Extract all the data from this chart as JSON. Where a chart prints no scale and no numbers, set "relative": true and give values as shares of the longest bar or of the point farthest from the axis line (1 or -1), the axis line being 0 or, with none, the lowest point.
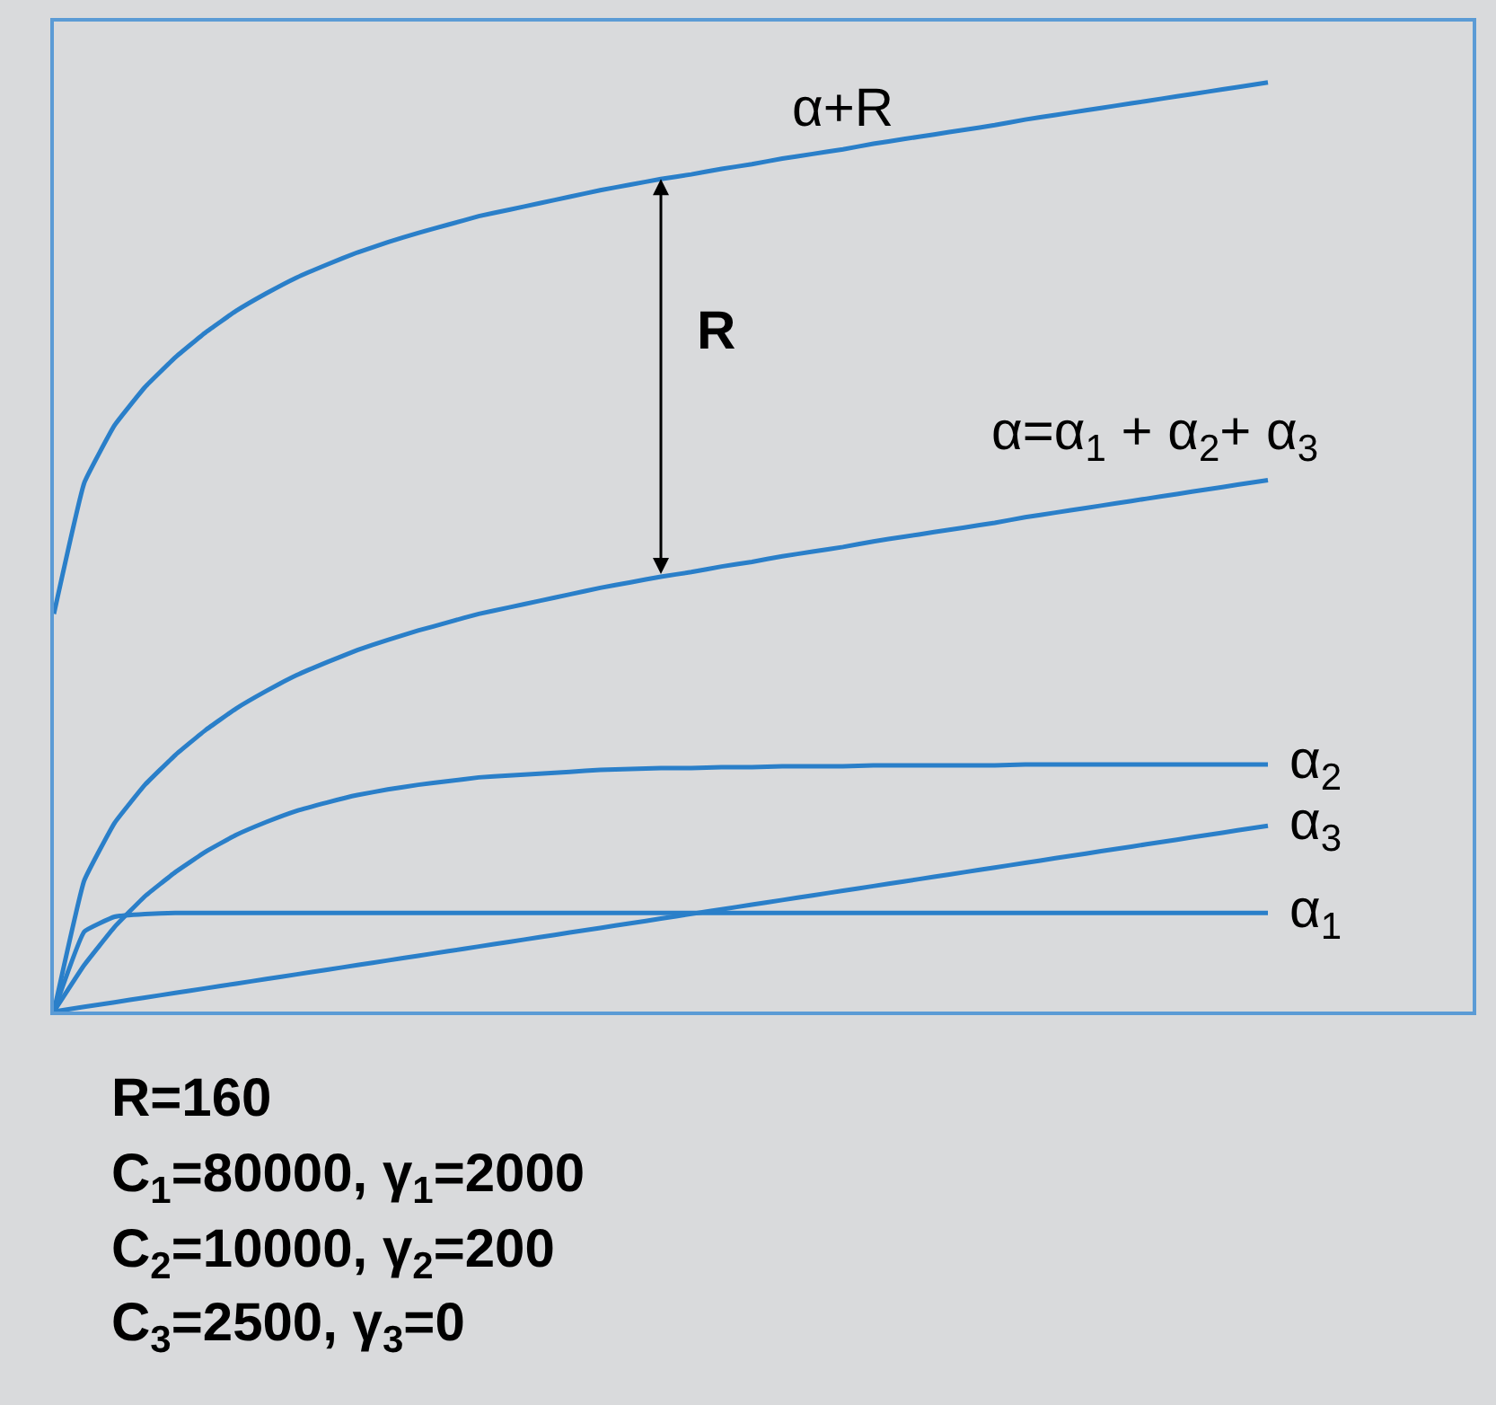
{
  "chart_data": {
    "type": "line",
    "relative": true,
    "legend": false,
    "grid": false,
    "marker": "none",
    "line_style": "solid",
    "categories": [
      null,
      null,
      null,
      null,
      null,
      null,
      null,
      null,
      null,
      null,
      null,
      null,
      null,
      null,
      null,
      null,
      null,
      null,
      null,
      null,
      null,
      null,
      null,
      null,
      null,
      null,
      null,
      null,
      null,
      null,
      null,
      null,
      null,
      null,
      null,
      null,
      null,
      null,
      null,
      null,
      null
    ],
    "series": [
      {
        "name": "α+R",
        "color": "#2a7fc9",
        "values": [
          0.428,
          0.569,
          0.631,
          0.672,
          0.704,
          0.731,
          0.754,
          0.773,
          0.79,
          0.804,
          0.817,
          0.828,
          0.838,
          0.847,
          0.856,
          0.863,
          0.87,
          0.877,
          0.884,
          0.89,
          0.896,
          0.901,
          0.907,
          0.912,
          0.918,
          0.923,
          0.928,
          0.934,
          0.939,
          0.944,
          0.949,
          0.954,
          0.96,
          0.965,
          0.97,
          0.975,
          0.98,
          0.985,
          0.99,
          0.995,
          1.0
        ]
      },
      {
        "name": "α=α$_{1}$ + α$_{2}$+ α$_{3}$",
        "color": "#2a7fc9",
        "values": [
          0,
          0.141,
          0.203,
          0.244,
          0.276,
          0.303,
          0.326,
          0.345,
          0.362,
          0.376,
          0.389,
          0.4,
          0.41,
          0.419,
          0.428,
          0.435,
          0.442,
          0.449,
          0.456,
          0.462,
          0.468,
          0.473,
          0.479,
          0.484,
          0.49,
          0.495,
          0.5,
          0.506,
          0.511,
          0.516,
          0.521,
          0.526,
          0.532,
          0.537,
          0.542,
          0.547,
          0.552,
          0.557,
          0.562,
          0.567,
          0.572
        ]
      },
      {
        "name": "α$_{2}$",
        "color": "#2a7fc9",
        "values": [
          0,
          0.05,
          0.091,
          0.124,
          0.15,
          0.172,
          0.19,
          0.204,
          0.216,
          0.225,
          0.233,
          0.239,
          0.244,
          0.248,
          0.252,
          0.254,
          0.256,
          0.258,
          0.26,
          0.261,
          0.262,
          0.262,
          0.263,
          0.263,
          0.264,
          0.264,
          0.264,
          0.265,
          0.265,
          0.265,
          0.265,
          0.265,
          0.266,
          0.266,
          0.266,
          0.266,
          0.266,
          0.266,
          0.266,
          0.266,
          0.266
        ]
      },
      {
        "name": "α$_{3}$",
        "color": "#2a7fc9",
        "values": [
          0,
          0.005,
          0.01,
          0.015,
          0.02,
          0.025,
          0.03,
          0.035,
          0.04,
          0.045,
          0.05,
          0.055,
          0.06,
          0.065,
          0.07,
          0.075,
          0.08,
          0.085,
          0.09,
          0.095,
          0.1,
          0.105,
          0.11,
          0.115,
          0.12,
          0.125,
          0.13,
          0.135,
          0.14,
          0.145,
          0.15,
          0.155,
          0.16,
          0.165,
          0.17,
          0.175,
          0.18,
          0.185,
          0.19,
          0.195,
          0.2
        ]
      },
      {
        "name": "α$_{1}$",
        "color": "#2a7fc9",
        "values": [
          0,
          0.086,
          0.102,
          0.105,
          0.106,
          0.106,
          0.106,
          0.106,
          0.106,
          0.106,
          0.106,
          0.106,
          0.106,
          0.106,
          0.106,
          0.106,
          0.106,
          0.106,
          0.106,
          0.106,
          0.106,
          0.106,
          0.106,
          0.106,
          0.106,
          0.106,
          0.106,
          0.106,
          0.106,
          0.106,
          0.106,
          0.106,
          0.106,
          0.106,
          0.106,
          0.106,
          0.106,
          0.106,
          0.106,
          0.106,
          0.106
        ]
      }
    ],
    "annotations": [
      "R",
      "R=160",
      "C$_{1}$=80000, γ$_{1}$=2000",
      "C$_{2}$=10000, γ$_{2}$=200",
      "C$_{3}$=2500, γ$_{3}$=0"
    ]
  }
}
